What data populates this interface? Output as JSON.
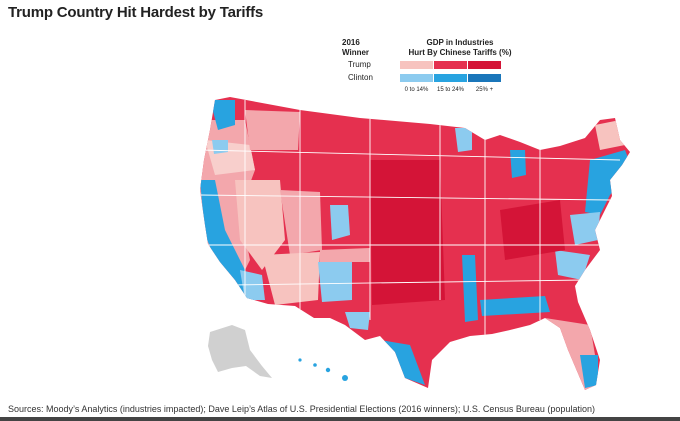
{
  "title": "Trump Country Hit Hardest by Tariffs",
  "legend": {
    "winner_heading_line1": "2016",
    "winner_heading_line2": "Winner",
    "gdp_heading_line1": "GDP in Industries",
    "gdp_heading_line2": "Hurt By Chinese Tariffs (%)",
    "rows": [
      {
        "label": "Trump",
        "colors": [
          "#f7c3bf",
          "#e5304f",
          "#d41437"
        ]
      },
      {
        "label": "Clinton",
        "colors": [
          "#8ccbef",
          "#28a3e0",
          "#1a76ba"
        ]
      }
    ],
    "ranges": [
      "0 to 14%",
      "15 to 24%",
      "25% +"
    ]
  },
  "colors": {
    "trump_low": "#f7c3bf",
    "trump_mid": "#e5304f",
    "trump_high": "#d41437",
    "clinton_low": "#8ccbef",
    "clinton_mid": "#28a3e0",
    "clinton_high": "#1a76ba",
    "no_data": "#d0d0d0",
    "state_border": "#ffffff"
  },
  "source": "Sources: Moody’s Analytics (industries impacted); Dave Leip’s Atlas of U.S. Presidential Elections (2016 winners); U.S. Census Bureau (population)"
}
